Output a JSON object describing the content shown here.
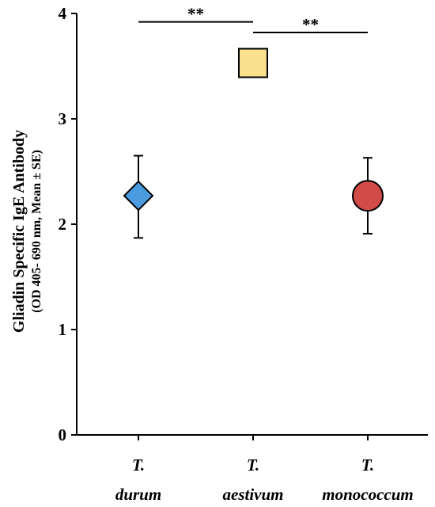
{
  "chart_data": {
    "type": "scatter",
    "ylabel": "Gliadin Specific IgE Antibody",
    "ylabel_sub": "(OD 405- 690 nm, Mean ± SE)",
    "ylim": [
      0,
      4
    ],
    "yticks": [
      "0",
      "1",
      "2",
      "3",
      "4"
    ],
    "categories": [
      {
        "line1": "T.",
        "line2": "durum"
      },
      {
        "line1": "T.",
        "line2": "aestivum"
      },
      {
        "line1": "T.",
        "line2": "monococcum"
      }
    ],
    "points": [
      {
        "mean": 2.27,
        "se_low": 1.87,
        "se_high": 2.65,
        "marker": "diamond",
        "color": "#4a9be0"
      },
      {
        "mean": 3.53,
        "se_low": 3.53,
        "se_high": 3.53,
        "marker": "square",
        "color": "#fbe08e"
      },
      {
        "mean": 2.27,
        "se_low": 1.91,
        "se_high": 2.63,
        "marker": "circle",
        "color": "#d14b48"
      }
    ],
    "significance": [
      {
        "from": 0,
        "to": 1,
        "y": 3.92,
        "label": "**"
      },
      {
        "from": 1,
        "to": 2,
        "y": 3.82,
        "label": "**"
      }
    ]
  }
}
